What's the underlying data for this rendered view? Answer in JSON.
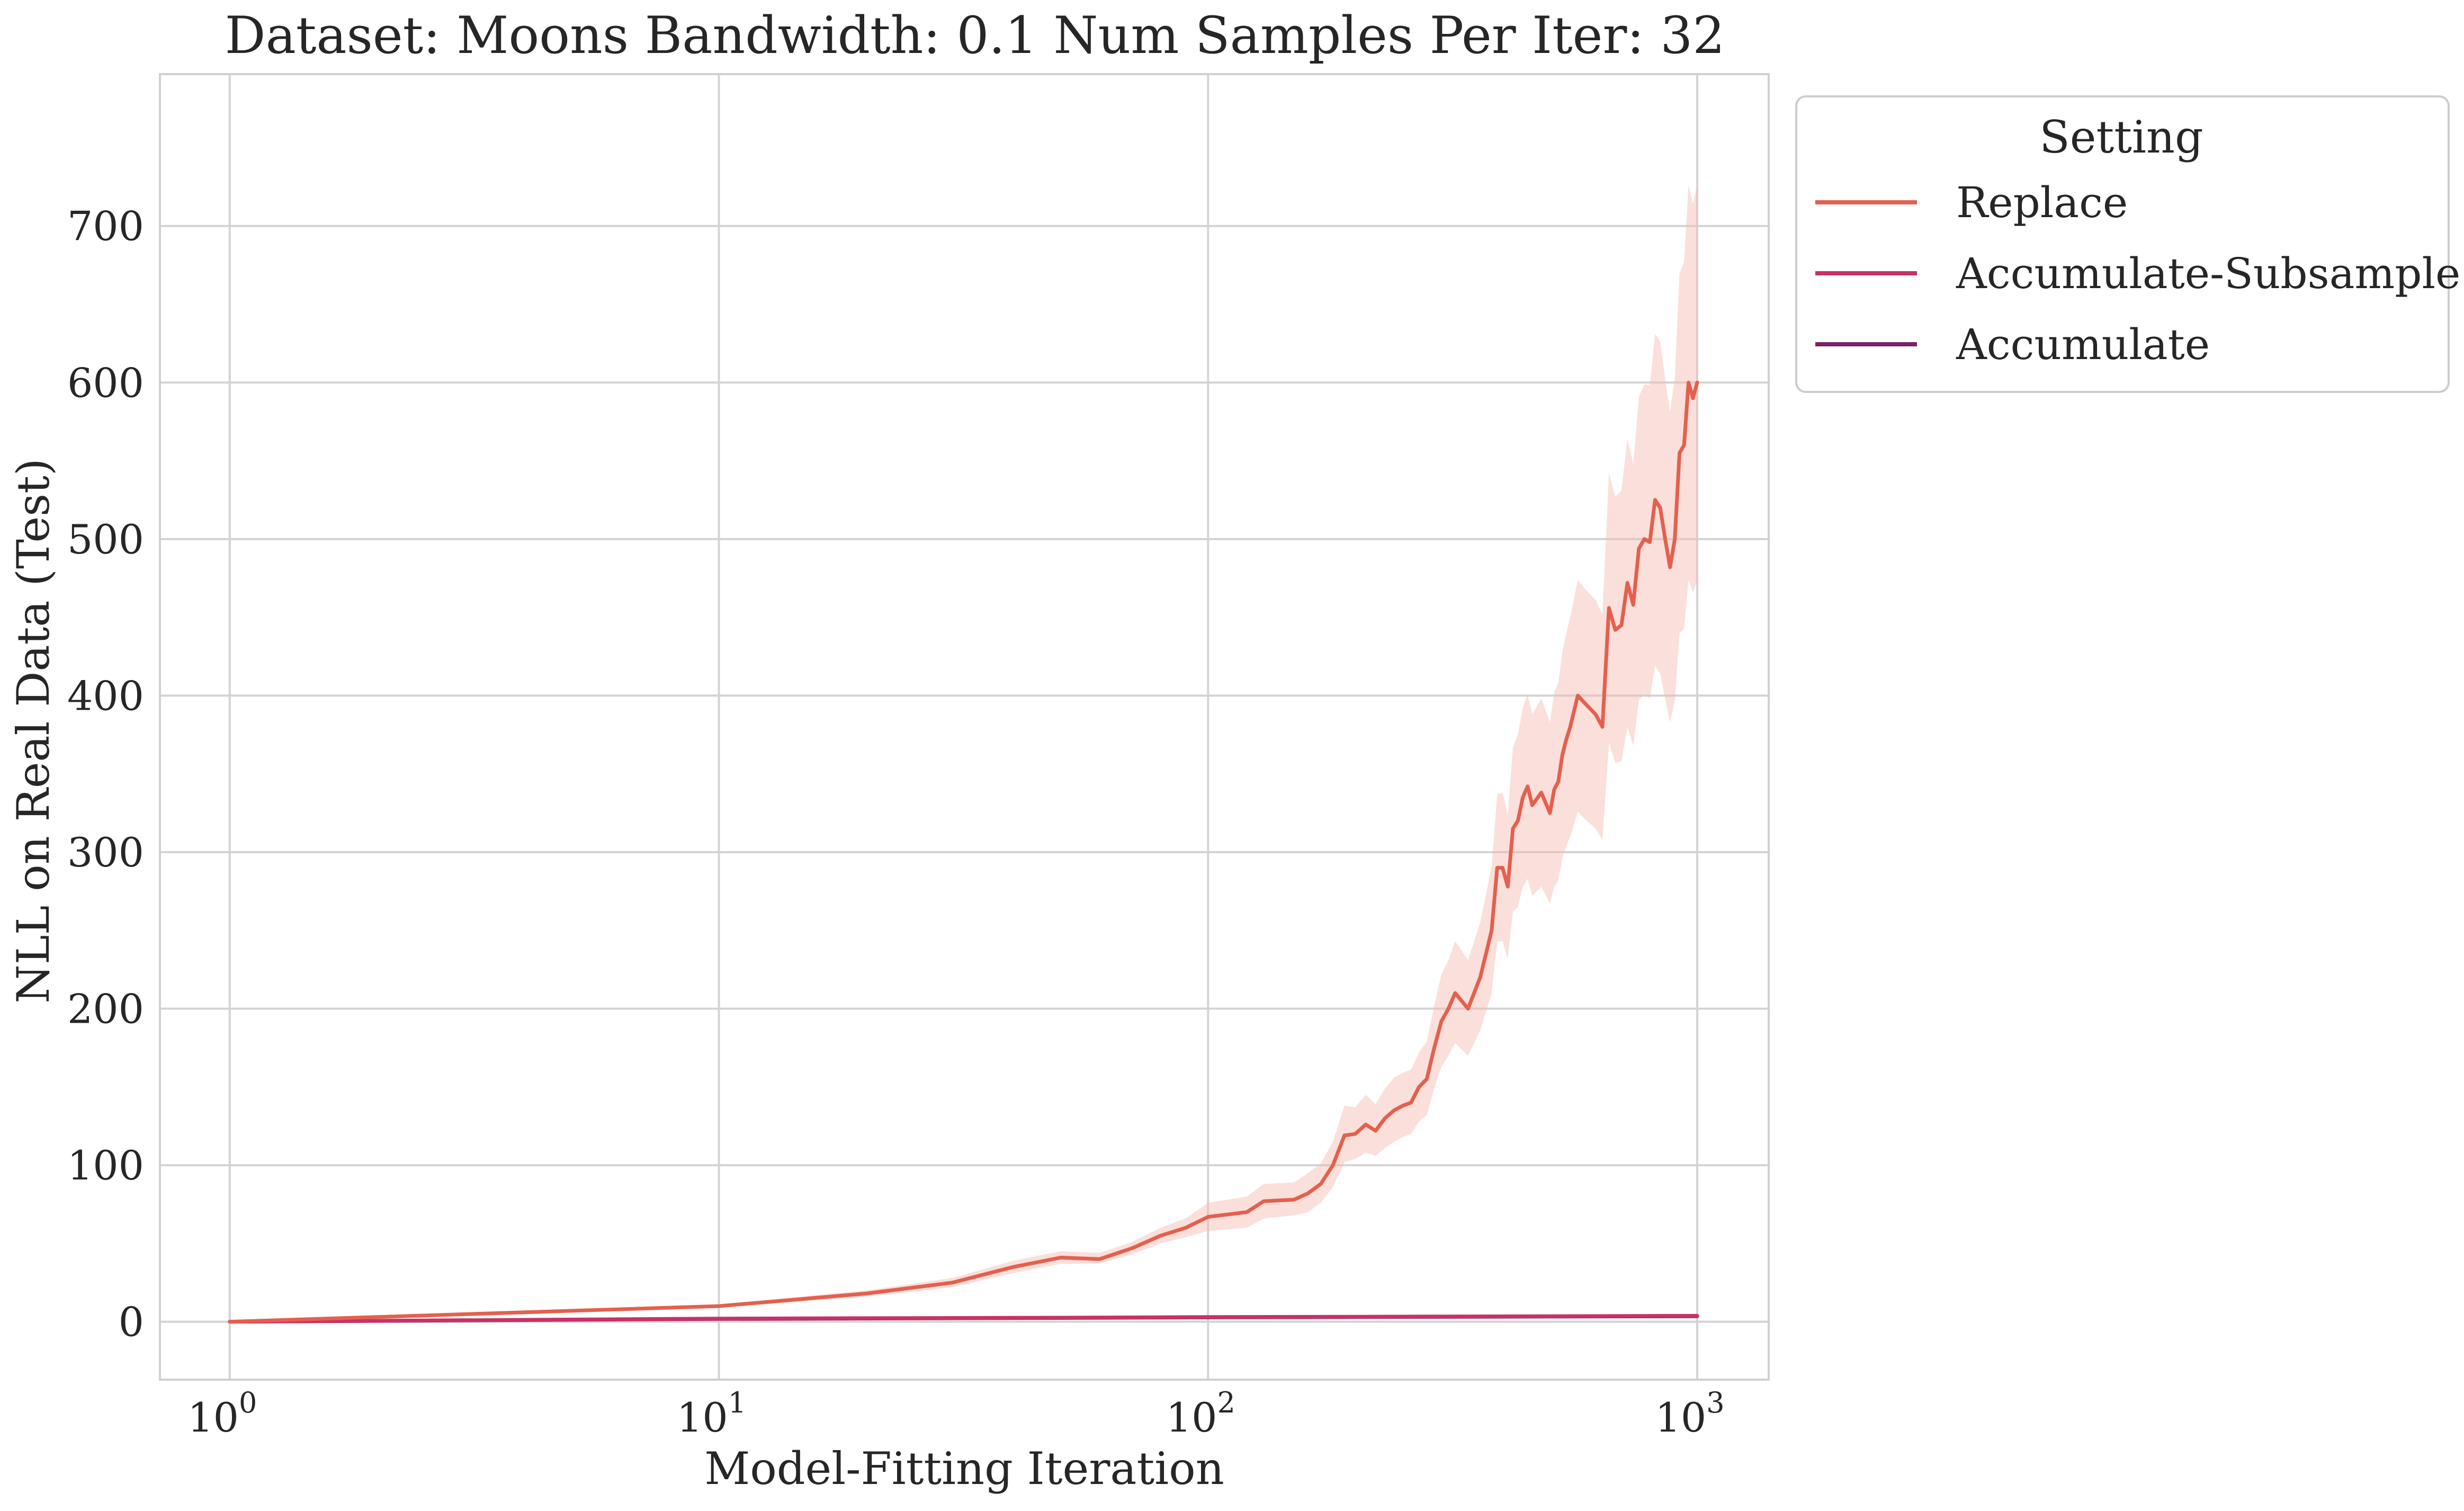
{
  "chart_data": {
    "type": "line",
    "title": "Dataset: Moons Bandwidth: 0.1 Num Samples Per Iter: 32",
    "xlabel": "Model-Fitting Iteration",
    "ylabel": "NLL on Real Data (Test)",
    "xscale": "log",
    "xlim": [
      0.72,
      1400
    ],
    "ylim": [
      -37,
      797
    ],
    "grid": true,
    "x_ticks": [
      {
        "value": 1,
        "base": "10",
        "exp": "0"
      },
      {
        "value": 10,
        "base": "10",
        "exp": "1"
      },
      {
        "value": 100,
        "base": "10",
        "exp": "2"
      },
      {
        "value": 1000,
        "base": "10",
        "exp": "3"
      }
    ],
    "y_ticks": [
      {
        "value": 0,
        "label": "0"
      },
      {
        "value": 100,
        "label": "100"
      },
      {
        "value": 200,
        "label": "200"
      },
      {
        "value": 300,
        "label": "300"
      },
      {
        "value": 400,
        "label": "400"
      },
      {
        "value": 500,
        "label": "500"
      },
      {
        "value": 600,
        "label": "600"
      },
      {
        "value": 700,
        "label": "700"
      }
    ],
    "legend": {
      "title": "Setting",
      "position": "outside-top-right"
    },
    "series": [
      {
        "name": "Replace",
        "color": "#e4604e",
        "band_color": "#f4b8ad",
        "x": [
          1,
          10,
          20,
          30,
          40,
          50,
          60,
          70,
          80,
          90,
          100,
          120,
          130,
          150,
          160,
          170,
          180,
          190,
          200,
          210,
          220,
          230,
          240,
          250,
          260,
          270,
          280,
          290,
          300,
          310,
          320,
          340,
          360,
          370,
          380,
          390,
          400,
          410,
          420,
          430,
          440,
          450,
          460,
          480,
          500,
          510,
          520,
          530,
          540,
          550,
          570,
          590,
          620,
          640,
          660,
          680,
          700,
          720,
          740,
          760,
          780,
          800,
          820,
          840,
          860,
          880,
          900,
          920,
          940,
          960,
          980,
          1000
        ],
        "y": [
          0,
          10,
          18,
          25,
          35,
          41,
          40,
          47,
          55,
          60,
          67,
          70,
          77,
          78,
          82,
          88,
          100,
          119,
          120,
          126,
          122,
          130,
          135,
          138,
          140,
          150,
          155,
          175,
          192,
          200,
          210,
          200,
          220,
          235,
          250,
          290,
          290,
          278,
          315,
          320,
          335,
          342,
          330,
          338,
          325,
          340,
          345,
          362,
          372,
          380,
          400,
          395,
          388,
          380,
          456,
          442,
          445,
          472,
          458,
          494,
          500,
          498,
          525,
          520,
          500,
          482,
          500,
          555,
          560,
          600,
          590,
          600
        ],
        "lower": [
          0,
          9,
          16,
          22,
          31,
          37,
          37,
          43,
          50,
          54,
          58,
          60,
          66,
          68,
          70,
          76,
          86,
          102,
          104,
          108,
          106,
          111,
          115,
          118,
          120,
          128,
          132,
          149,
          163,
          170,
          178,
          170,
          186,
          198,
          210,
          243,
          243,
          232,
          262,
          265,
          278,
          283,
          272,
          278,
          267,
          278,
          282,
          296,
          304,
          310,
          326,
          321,
          315,
          308,
          370,
          357,
          358,
          380,
          368,
          397,
          401,
          398,
          419,
          414,
          398,
          383,
          397,
          440,
          443,
          474,
          466,
          473
        ],
        "upper": [
          0.5,
          11,
          20,
          28,
          39,
          45,
          44,
          51,
          60,
          66,
          76,
          80,
          88,
          89,
          95,
          101,
          115,
          138,
          137,
          145,
          139,
          149,
          156,
          159,
          161,
          172,
          179,
          202,
          222,
          231,
          243,
          231,
          255,
          273,
          291,
          337,
          338,
          324,
          367,
          375,
          392,
          401,
          388,
          398,
          383,
          402,
          408,
          428,
          440,
          450,
          474,
          468,
          461,
          452,
          542,
          527,
          531,
          564,
          548,
          591,
          599,
          598,
          631,
          626,
          602,
          581,
          603,
          670,
          677,
          726,
          714,
          727
        ]
      },
      {
        "name": "Accumulate-Subsample",
        "color": "#c83266",
        "x": [
          1,
          10,
          50,
          100,
          200,
          500,
          1000
        ],
        "y": [
          0,
          2,
          2.6,
          3,
          3.2,
          3.5,
          3.8
        ]
      },
      {
        "name": "Accumulate",
        "color": "#7b2166",
        "x": [
          1,
          10,
          50,
          100,
          200,
          500,
          1000
        ],
        "y": [
          0,
          1.8,
          2.4,
          2.8,
          3,
          3.3,
          3.5
        ]
      }
    ]
  }
}
